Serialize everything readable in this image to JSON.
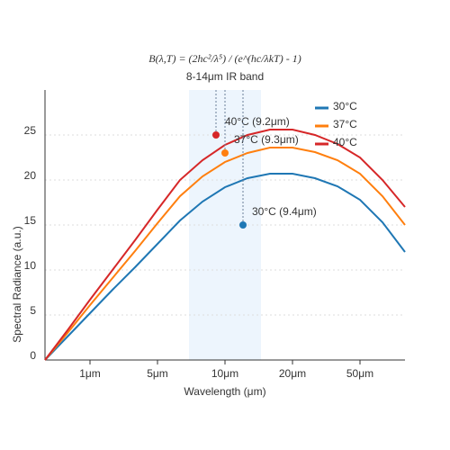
{
  "chart_data": {
    "type": "line",
    "title": "B(λ,T) = (2hc²/λ⁵) / (e^(hc/λkT) - 1)",
    "subtitle": "8-14μm IR band",
    "x_label": "Wavelength (μm)",
    "y_label": "Spectral Radiance (a.u.)",
    "x": [
      0,
      0.5,
      1,
      1.5,
      2,
      2.5,
      3,
      3.5,
      4,
      4.5,
      5,
      5.5,
      6,
      6.5,
      7,
      7.5,
      8
    ],
    "series": [
      {
        "name": "30°C",
        "color": "#1f77b4",
        "values": [
          0,
          2.6,
          5.2,
          7.8,
          10.3,
          12.9,
          15.5,
          17.6,
          19.2,
          20.2,
          20.7,
          20.7,
          20.2,
          19.3,
          17.8,
          15.3,
          12
        ]
      },
      {
        "name": "37°C",
        "color": "#ff7f0e",
        "values": [
          0,
          3,
          6.1,
          9.1,
          12.1,
          15.2,
          18.2,
          20.4,
          22,
          23,
          23.6,
          23.6,
          23.1,
          22.2,
          20.7,
          18.2,
          15
        ]
      },
      {
        "name": "40°C",
        "color": "#d62728",
        "values": [
          0,
          3.3,
          6.7,
          10,
          13.3,
          16.7,
          20,
          22.2,
          23.9,
          25,
          25.6,
          25.6,
          25,
          24,
          22.5,
          20,
          17
        ]
      }
    ],
    "band": [
      3.2,
      4.8
    ],
    "annotations": [
      {
        "text": "40°C (9.2μm)",
        "x": 3.8,
        "y": 25,
        "color": "#d62728"
      },
      {
        "text": "37°C (9.3μm)",
        "x": 4.0,
        "y": 23,
        "color": "#ff7f0e"
      },
      {
        "text": "30°C (9.4μm)",
        "x": 4.4,
        "y": 15,
        "color": "#1f77b4"
      }
    ],
    "xlim": [
      0,
      8
    ],
    "ylim": [
      0,
      30
    ],
    "xticks": [
      {
        "value": 1,
        "label": "1μm"
      },
      {
        "value": 2.5,
        "label": "5μm"
      },
      {
        "value": 4,
        "label": "10μm"
      },
      {
        "value": 5.5,
        "label": "20μm"
      },
      {
        "value": 7,
        "label": "50μm"
      }
    ],
    "yticks": [
      0,
      5,
      10,
      15,
      20,
      25
    ],
    "grid": true,
    "legend": "top-right"
  }
}
